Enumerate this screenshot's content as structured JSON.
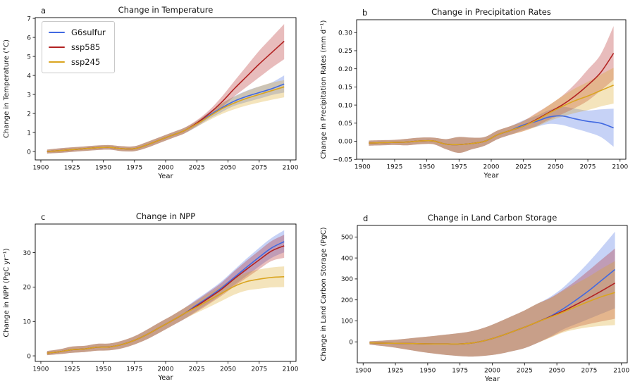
{
  "figure": {
    "background": "#ffffff"
  },
  "series_colors": {
    "G6sulfur": "#4169e1",
    "ssp585": "#b22222",
    "ssp245": "#daa520"
  },
  "band_opacity": 0.3,
  "legend": {
    "entries": [
      "G6sulfur",
      "ssp585",
      "ssp245"
    ],
    "position": "upper left of panel a"
  },
  "chart_data": [
    {
      "panel_label": "a",
      "type": "line",
      "title": "Change in Temperature",
      "xlabel": "Year",
      "ylabel": "Change in Temperature (°C)",
      "xlim": [
        1895.5,
        2104.5
      ],
      "ylim": [
        -0.44,
        7.04
      ],
      "xticks": [
        1900,
        1925,
        1950,
        1975,
        2000,
        2025,
        2050,
        2075,
        2100
      ],
      "yticks": [
        0,
        1,
        2,
        3,
        4,
        5,
        6,
        7
      ],
      "ydecimals": 0,
      "grid": false,
      "show_legend": true,
      "x": [
        1905,
        1915,
        1925,
        1935,
        1945,
        1955,
        1965,
        1975,
        1985,
        1995,
        2005,
        2015,
        2025,
        2035,
        2045,
        2055,
        2065,
        2075,
        2085,
        2095
      ],
      "series": [
        {
          "name": "G6sulfur",
          "color": "#4169e1",
          "values": [
            0.0,
            0.05,
            0.1,
            0.15,
            0.2,
            0.22,
            0.15,
            0.15,
            0.35,
            0.6,
            0.85,
            1.1,
            1.45,
            1.9,
            2.3,
            2.65,
            2.9,
            3.1,
            3.3,
            3.55
          ],
          "lo": [
            -0.1,
            -0.07,
            -0.02,
            0.03,
            0.08,
            0.1,
            0.02,
            0.02,
            0.2,
            0.45,
            0.7,
            0.95,
            1.3,
            1.72,
            2.08,
            2.4,
            2.6,
            2.78,
            2.97,
            3.1
          ],
          "hi": [
            0.1,
            0.17,
            0.22,
            0.27,
            0.32,
            0.34,
            0.28,
            0.28,
            0.5,
            0.75,
            1.0,
            1.25,
            1.6,
            2.08,
            2.52,
            2.9,
            3.2,
            3.42,
            3.63,
            4.0
          ]
        },
        {
          "name": "ssp585",
          "color": "#b22222",
          "values": [
            0.0,
            0.05,
            0.1,
            0.15,
            0.2,
            0.22,
            0.15,
            0.15,
            0.35,
            0.6,
            0.85,
            1.1,
            1.5,
            2.0,
            2.6,
            3.3,
            3.95,
            4.6,
            5.2,
            5.8
          ],
          "lo": [
            -0.1,
            -0.07,
            -0.02,
            0.03,
            0.08,
            0.1,
            0.02,
            0.02,
            0.2,
            0.45,
            0.7,
            0.95,
            1.35,
            1.82,
            2.32,
            2.9,
            3.4,
            3.9,
            4.4,
            4.85
          ],
          "hi": [
            0.1,
            0.17,
            0.22,
            0.27,
            0.32,
            0.34,
            0.28,
            0.28,
            0.5,
            0.75,
            1.0,
            1.25,
            1.65,
            2.18,
            2.88,
            3.7,
            4.5,
            5.3,
            6.0,
            6.7
          ]
        },
        {
          "name": "ssp245",
          "color": "#daa520",
          "values": [
            0.0,
            0.05,
            0.1,
            0.15,
            0.2,
            0.22,
            0.15,
            0.15,
            0.35,
            0.6,
            0.85,
            1.1,
            1.45,
            1.85,
            2.25,
            2.55,
            2.8,
            3.0,
            3.2,
            3.4
          ],
          "lo": [
            -0.1,
            -0.07,
            -0.02,
            0.03,
            0.08,
            0.1,
            0.02,
            0.02,
            0.2,
            0.45,
            0.7,
            0.95,
            1.3,
            1.65,
            1.97,
            2.22,
            2.42,
            2.58,
            2.72,
            2.85
          ],
          "hi": [
            0.1,
            0.17,
            0.22,
            0.27,
            0.32,
            0.34,
            0.28,
            0.28,
            0.5,
            0.75,
            1.0,
            1.25,
            1.6,
            2.05,
            2.53,
            2.88,
            3.18,
            3.42,
            3.62,
            3.75
          ]
        }
      ]
    },
    {
      "panel_label": "b",
      "type": "line",
      "title": "Change in Precipitation Rates",
      "xlabel": "Year",
      "ylabel": "Change in Precipitation Rates (mm d⁻¹)",
      "xlim": [
        1895.5,
        2104.5
      ],
      "ylim": [
        -0.0495,
        0.3355
      ],
      "xticks": [
        1900,
        1925,
        1950,
        1975,
        2000,
        2025,
        2050,
        2075,
        2100
      ],
      "yticks": [
        -0.05,
        0.0,
        0.05,
        0.1,
        0.15,
        0.2,
        0.25,
        0.3
      ],
      "ydecimals": 2,
      "grid": false,
      "show_legend": false,
      "x": [
        1905,
        1915,
        1925,
        1935,
        1945,
        1955,
        1965,
        1975,
        1985,
        1995,
        2005,
        2015,
        2025,
        2035,
        2045,
        2055,
        2065,
        2075,
        2085,
        2095
      ],
      "series": [
        {
          "name": "G6sulfur",
          "color": "#4169e1",
          "values": [
            -0.005,
            -0.004,
            -0.003,
            -0.002,
            0.001,
            0.001,
            -0.008,
            -0.009,
            -0.006,
            0.0,
            0.018,
            0.03,
            0.045,
            0.055,
            0.067,
            0.07,
            0.062,
            0.055,
            0.05,
            0.037
          ],
          "lo": [
            -0.012,
            -0.011,
            -0.01,
            -0.011,
            -0.008,
            -0.008,
            -0.022,
            -0.032,
            -0.022,
            -0.012,
            0.006,
            0.018,
            0.032,
            0.04,
            0.048,
            0.045,
            0.035,
            0.025,
            0.012,
            -0.015
          ],
          "hi": [
            0.002,
            0.003,
            0.004,
            0.007,
            0.01,
            0.01,
            0.006,
            0.012,
            0.01,
            0.012,
            0.03,
            0.042,
            0.058,
            0.07,
            0.086,
            0.095,
            0.09,
            0.085,
            0.088,
            0.09
          ]
        },
        {
          "name": "ssp585",
          "color": "#b22222",
          "values": [
            -0.005,
            -0.004,
            -0.003,
            -0.002,
            0.001,
            0.001,
            -0.008,
            -0.009,
            -0.006,
            0.0,
            0.018,
            0.03,
            0.042,
            0.06,
            0.08,
            0.1,
            0.125,
            0.155,
            0.19,
            0.243
          ],
          "lo": [
            -0.012,
            -0.011,
            -0.01,
            -0.011,
            -0.008,
            -0.008,
            -0.022,
            -0.032,
            -0.022,
            -0.012,
            0.006,
            0.018,
            0.028,
            0.042,
            0.06,
            0.075,
            0.092,
            0.112,
            0.14,
            0.17
          ],
          "hi": [
            0.002,
            0.003,
            0.004,
            0.007,
            0.01,
            0.01,
            0.006,
            0.012,
            0.01,
            0.012,
            0.03,
            0.042,
            0.056,
            0.078,
            0.1,
            0.125,
            0.158,
            0.198,
            0.24,
            0.318
          ]
        },
        {
          "name": "ssp245",
          "color": "#daa520",
          "values": [
            -0.005,
            -0.004,
            -0.003,
            -0.002,
            0.001,
            0.001,
            -0.008,
            -0.009,
            -0.006,
            0.0,
            0.018,
            0.03,
            0.042,
            0.058,
            0.078,
            0.096,
            0.112,
            0.125,
            0.14,
            0.155
          ],
          "lo": [
            -0.012,
            -0.011,
            -0.01,
            -0.011,
            -0.008,
            -0.008,
            -0.022,
            -0.032,
            -0.022,
            -0.012,
            0.006,
            0.018,
            0.028,
            0.04,
            0.056,
            0.068,
            0.078,
            0.086,
            0.096,
            0.104
          ],
          "hi": [
            0.002,
            0.003,
            0.004,
            0.007,
            0.01,
            0.01,
            0.006,
            0.012,
            0.01,
            0.012,
            0.03,
            0.042,
            0.056,
            0.076,
            0.1,
            0.124,
            0.146,
            0.164,
            0.184,
            0.203
          ]
        }
      ]
    },
    {
      "panel_label": "c",
      "type": "line",
      "title": "Change in NPP",
      "xlabel": "Year",
      "ylabel": "Change in NPP (PgC yr⁻¹)",
      "xlim": [
        1895.5,
        2104.5
      ],
      "ylim": [
        -1.62,
        38.32
      ],
      "xticks": [
        1900,
        1925,
        1950,
        1975,
        2000,
        2025,
        2050,
        2075,
        2100
      ],
      "yticks": [
        0,
        10,
        20,
        30
      ],
      "ydecimals": 0,
      "grid": false,
      "show_legend": false,
      "x": [
        1905,
        1915,
        1925,
        1935,
        1945,
        1955,
        1965,
        1975,
        1985,
        1995,
        2005,
        2015,
        2025,
        2035,
        2045,
        2055,
        2065,
        2075,
        2085,
        2095
      ],
      "series": [
        {
          "name": "G6sulfur",
          "color": "#4169e1",
          "values": [
            0.8,
            1.2,
            1.8,
            2.0,
            2.5,
            2.6,
            3.3,
            4.5,
            6.2,
            8.2,
            10.2,
            12.3,
            14.8,
            17.2,
            19.8,
            22.8,
            25.8,
            28.7,
            31.4,
            33.2
          ],
          "lo": [
            0.2,
            0.5,
            0.9,
            1.1,
            1.5,
            1.6,
            2.2,
            3.3,
            4.8,
            6.7,
            8.7,
            10.7,
            13.1,
            15.4,
            17.9,
            20.6,
            23.3,
            26.0,
            28.5,
            30.1
          ],
          "hi": [
            1.4,
            1.9,
            2.7,
            2.9,
            3.5,
            3.6,
            4.4,
            5.7,
            7.6,
            9.7,
            11.7,
            13.9,
            16.5,
            19.0,
            21.7,
            25.0,
            28.3,
            31.4,
            34.3,
            36.5
          ]
        },
        {
          "name": "ssp585",
          "color": "#b22222",
          "values": [
            0.8,
            1.2,
            1.8,
            2.0,
            2.5,
            2.6,
            3.3,
            4.5,
            6.2,
            8.2,
            10.2,
            12.3,
            14.5,
            16.9,
            19.4,
            22.4,
            25.2,
            27.9,
            30.5,
            32.0
          ],
          "lo": [
            0.2,
            0.5,
            0.9,
            1.1,
            1.5,
            1.6,
            2.2,
            3.3,
            4.8,
            6.7,
            8.7,
            10.7,
            12.8,
            15.1,
            17.5,
            20.2,
            22.7,
            25.2,
            27.6,
            28.5
          ],
          "hi": [
            1.4,
            1.9,
            2.7,
            2.9,
            3.5,
            3.6,
            4.4,
            5.7,
            7.6,
            9.7,
            11.7,
            13.9,
            16.2,
            18.7,
            21.3,
            24.6,
            27.7,
            30.6,
            33.4,
            35.2
          ]
        },
        {
          "name": "ssp245",
          "color": "#daa520",
          "values": [
            0.8,
            1.2,
            1.8,
            2.0,
            2.5,
            2.6,
            3.3,
            4.5,
            6.2,
            8.2,
            10.2,
            12.3,
            14.2,
            16.2,
            18.2,
            20.2,
            21.6,
            22.3,
            22.8,
            23.0
          ],
          "lo": [
            0.2,
            0.5,
            0.9,
            1.1,
            1.5,
            1.6,
            2.2,
            3.3,
            4.8,
            6.7,
            8.7,
            10.7,
            12.5,
            14.2,
            16.0,
            17.8,
            19.0,
            19.5,
            19.9,
            20.0
          ],
          "hi": [
            1.4,
            1.9,
            2.7,
            2.9,
            3.5,
            3.6,
            4.4,
            5.7,
            7.6,
            9.7,
            11.7,
            13.9,
            15.9,
            18.2,
            20.4,
            22.6,
            24.2,
            25.1,
            25.7,
            26.0
          ]
        }
      ]
    },
    {
      "panel_label": "d",
      "type": "line",
      "title": "Change in Land Carbon Storage",
      "xlabel": "Year",
      "ylabel": "Change in Land Carbon Storage (PgC)",
      "xlim": [
        1895.5,
        2104.5
      ],
      "ylim": [
        -100,
        555
      ],
      "xticks": [
        1900,
        1925,
        1950,
        1975,
        2000,
        2025,
        2050,
        2075,
        2100
      ],
      "yticks": [
        0,
        100,
        200,
        300,
        400,
        500
      ],
      "ydecimals": 0,
      "grid": false,
      "show_legend": false,
      "x": [
        1905,
        1915,
        1925,
        1935,
        1945,
        1955,
        1965,
        1975,
        1985,
        1995,
        2005,
        2015,
        2025,
        2035,
        2045,
        2055,
        2065,
        2075,
        2085,
        2095
      ],
      "series": [
        {
          "name": "G6sulfur",
          "color": "#4169e1",
          "values": [
            -5,
            -6,
            -7,
            -8,
            -9,
            -10,
            -10,
            -10,
            -5,
            7,
            25,
            47,
            70,
            95,
            122,
            158,
            200,
            245,
            295,
            345
          ],
          "lo": [
            -13,
            -20,
            -28,
            -38,
            -48,
            -56,
            -63,
            -68,
            -70,
            -66,
            -58,
            -45,
            -30,
            -5,
            25,
            60,
            85,
            110,
            135,
            160
          ],
          "hi": [
            3,
            6,
            10,
            16,
            22,
            28,
            35,
            42,
            52,
            70,
            95,
            122,
            150,
            182,
            215,
            260,
            318,
            382,
            452,
            525
          ]
        },
        {
          "name": "ssp585",
          "color": "#b22222",
          "values": [
            -5,
            -6,
            -7,
            -8,
            -9,
            -10,
            -10,
            -10,
            -5,
            7,
            25,
            47,
            70,
            95,
            120,
            147,
            178,
            210,
            244,
            280
          ],
          "lo": [
            -13,
            -20,
            -28,
            -38,
            -48,
            -56,
            -63,
            -68,
            -70,
            -66,
            -58,
            -45,
            -30,
            -5,
            22,
            50,
            70,
            85,
            98,
            110
          ],
          "hi": [
            3,
            6,
            10,
            16,
            22,
            28,
            35,
            42,
            52,
            70,
            95,
            122,
            150,
            182,
            210,
            248,
            292,
            342,
            394,
            445
          ]
        },
        {
          "name": "ssp245",
          "color": "#daa520",
          "values": [
            -5,
            -6,
            -7,
            -8,
            -9,
            -10,
            -10,
            -10,
            -5,
            7,
            25,
            47,
            70,
            95,
            118,
            142,
            168,
            193,
            216,
            235
          ],
          "lo": [
            -13,
            -20,
            -28,
            -38,
            -48,
            -56,
            -63,
            -68,
            -70,
            -66,
            -58,
            -45,
            -30,
            -5,
            20,
            45,
            60,
            70,
            76,
            80
          ],
          "hi": [
            3,
            6,
            10,
            16,
            22,
            28,
            35,
            42,
            52,
            70,
            95,
            122,
            150,
            182,
            208,
            244,
            278,
            312,
            350,
            385
          ]
        }
      ]
    }
  ]
}
